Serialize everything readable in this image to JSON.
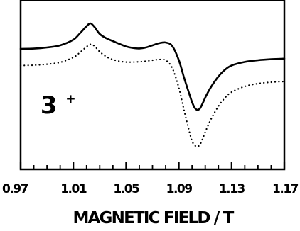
{
  "chart_data": {
    "type": "line",
    "title": "",
    "xlabel": "MAGNETIC FIELD / T",
    "ylabel": "",
    "xlim": [
      0.97,
      1.17
    ],
    "ylim": [
      0,
      1
    ],
    "x_ticks": [
      "0.97",
      "1.01",
      "1.05",
      "1.09",
      "1.13",
      "1.17"
    ],
    "x_minor_ticks": [
      0.98,
      0.99,
      1.0,
      1.02,
      1.03,
      1.04,
      1.06,
      1.07,
      1.08,
      1.1,
      1.11,
      1.12,
      1.14,
      1.15,
      1.16
    ],
    "grid": false,
    "annotation": {
      "text": "3",
      "superscript": "+",
      "x": 0.985,
      "y": 0.3
    },
    "series": [
      {
        "style": "solid",
        "color": "#000000",
        "x": [
          0.97,
          0.98,
          0.99,
          1.0,
          1.01,
          1.015,
          1.02,
          1.023,
          1.026,
          1.03,
          1.035,
          1.04,
          1.045,
          1.05,
          1.055,
          1.06,
          1.065,
          1.07,
          1.075,
          1.08,
          1.085,
          1.09,
          1.094,
          1.098,
          1.1,
          1.102,
          1.104,
          1.106,
          1.108,
          1.111,
          1.115,
          1.12,
          1.125,
          1.13,
          1.14,
          1.15,
          1.16,
          1.17
        ],
        "y": [
          0.755,
          0.757,
          0.765,
          0.78,
          0.82,
          0.865,
          0.915,
          0.935,
          0.91,
          0.86,
          0.83,
          0.81,
          0.79,
          0.772,
          0.762,
          0.758,
          0.765,
          0.78,
          0.795,
          0.8,
          0.775,
          0.675,
          0.55,
          0.435,
          0.38,
          0.34,
          0.325,
          0.335,
          0.37,
          0.43,
          0.495,
          0.56,
          0.608,
          0.638,
          0.663,
          0.675,
          0.682,
          0.686
        ]
      },
      {
        "style": "dotted",
        "color": "#000000",
        "x": [
          0.97,
          0.98,
          0.99,
          1.0,
          1.01,
          1.015,
          1.02,
          1.023,
          1.026,
          1.03,
          1.035,
          1.04,
          1.045,
          1.05,
          1.055,
          1.06,
          1.065,
          1.07,
          1.075,
          1.08,
          1.085,
          1.09,
          1.094,
          1.098,
          1.1,
          1.102,
          1.104,
          1.106,
          1.108,
          1.111,
          1.115,
          1.12,
          1.125,
          1.13,
          1.14,
          1.15,
          1.16,
          1.17
        ],
        "y": [
          0.638,
          0.64,
          0.647,
          0.66,
          0.695,
          0.73,
          0.77,
          0.787,
          0.775,
          0.735,
          0.7,
          0.68,
          0.668,
          0.662,
          0.662,
          0.664,
          0.668,
          0.675,
          0.68,
          0.675,
          0.62,
          0.48,
          0.32,
          0.17,
          0.105,
          0.075,
          0.065,
          0.08,
          0.12,
          0.19,
          0.27,
          0.35,
          0.41,
          0.45,
          0.49,
          0.51,
          0.52,
          0.525
        ]
      }
    ]
  }
}
